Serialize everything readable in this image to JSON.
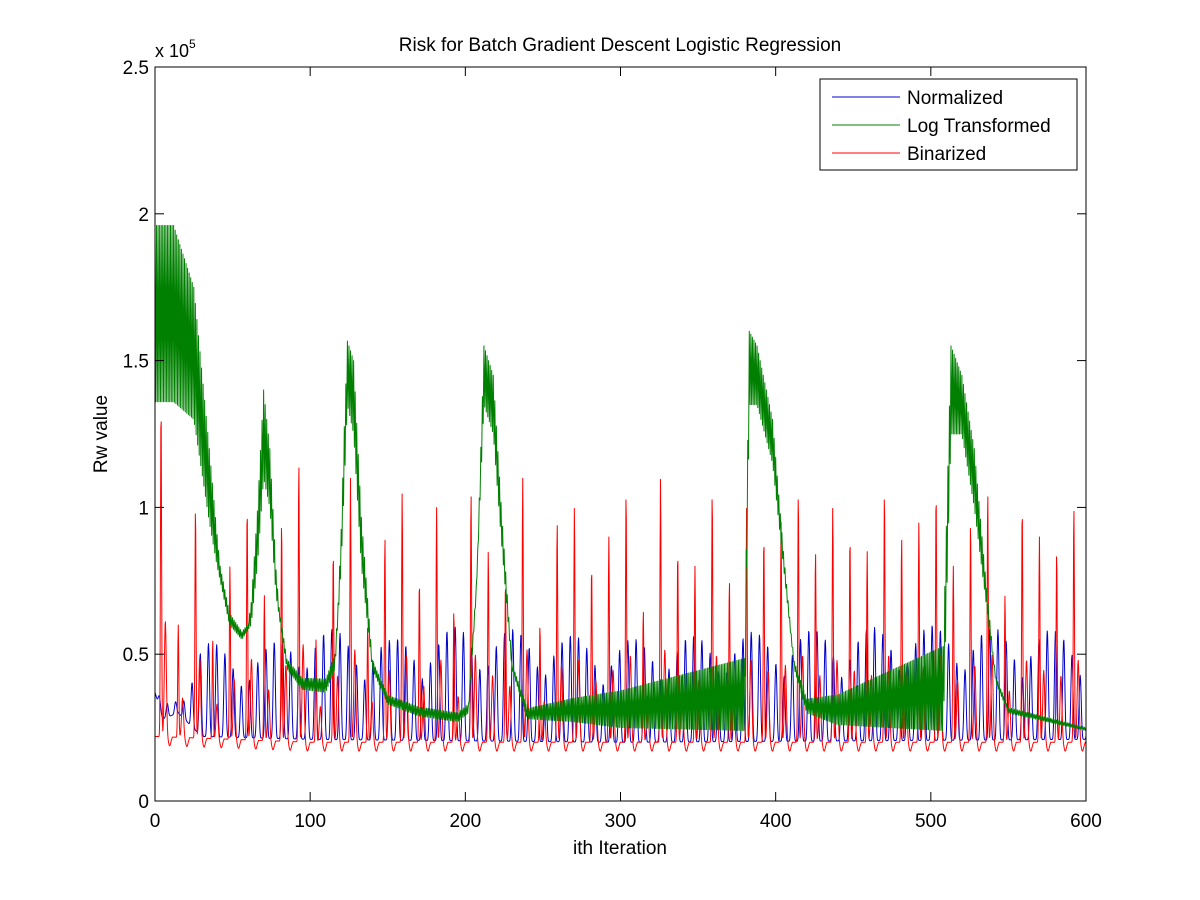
{
  "chart_data": {
    "type": "line",
    "title": "Risk for Batch Gradient Descent Logistic Regression",
    "xlabel": "ith Iteration",
    "ylabel": "Rw value",
    "y_exponent_label": "x 10",
    "y_exponent_power": "5",
    "xlim": [
      0,
      600
    ],
    "ylim": [
      0,
      2.5
    ],
    "y_scale": 100000,
    "x_ticks": [
      0,
      100,
      200,
      300,
      400,
      500,
      600
    ],
    "x_tick_labels": [
      "0",
      "100",
      "200",
      "300",
      "400",
      "500",
      "600"
    ],
    "y_ticks": [
      0,
      0.5,
      1,
      1.5,
      2,
      2.5
    ],
    "y_tick_labels": [
      "0",
      "0.5",
      "1",
      "1.5",
      "2",
      "2.5"
    ],
    "grid": false,
    "legend_position": "top-right",
    "series": [
      {
        "name": "Normalized",
        "color": "#0000cc",
        "pattern": "oscillating",
        "period": 5.3,
        "base": [
          [
            0,
            0.37
          ],
          [
            5,
            0.28
          ],
          [
            15,
            0.3
          ],
          [
            30,
            0.22
          ],
          [
            100,
            0.21
          ],
          [
            300,
            0.2
          ],
          [
            600,
            0.21
          ]
        ],
        "peak": [
          [
            0,
            0.37
          ],
          [
            10,
            0.33
          ],
          [
            20,
            0.4
          ],
          [
            30,
            0.55
          ],
          [
            60,
            0.5
          ],
          [
            100,
            0.6
          ],
          [
            150,
            0.55
          ],
          [
            200,
            0.6
          ],
          [
            300,
            0.55
          ],
          [
            400,
            0.58
          ],
          [
            500,
            0.6
          ],
          [
            600,
            0.58
          ]
        ]
      },
      {
        "name": "Log Transformed",
        "color": "#008000",
        "pattern": "bursts",
        "period": 2,
        "base": [
          [
            0,
            1.36
          ],
          [
            12,
            1.36
          ],
          [
            25,
            1.3
          ],
          [
            35,
            0.95
          ],
          [
            40,
            0.8
          ],
          [
            48,
            0.6
          ],
          [
            56,
            0.55
          ],
          [
            62,
            0.6
          ],
          [
            66,
            0.8
          ],
          [
            70,
            1.1
          ],
          [
            74,
            1.0
          ],
          [
            78,
            0.7
          ],
          [
            85,
            0.45
          ],
          [
            95,
            0.38
          ],
          [
            110,
            0.37
          ],
          [
            116,
            0.45
          ],
          [
            120,
            0.8
          ],
          [
            124,
            1.35
          ],
          [
            128,
            1.25
          ],
          [
            133,
            0.8
          ],
          [
            140,
            0.45
          ],
          [
            150,
            0.33
          ],
          [
            170,
            0.29
          ],
          [
            195,
            0.27
          ],
          [
            202,
            0.3
          ],
          [
            207,
            0.7
          ],
          [
            212,
            1.35
          ],
          [
            218,
            1.25
          ],
          [
            223,
            0.9
          ],
          [
            230,
            0.45
          ],
          [
            240,
            0.28
          ],
          [
            270,
            0.27
          ],
          [
            300,
            0.25
          ],
          [
            380,
            0.24
          ],
          [
            383,
            1.35
          ],
          [
            388,
            1.35
          ],
          [
            398,
            1.15
          ],
          [
            405,
            0.8
          ],
          [
            412,
            0.45
          ],
          [
            420,
            0.3
          ],
          [
            440,
            0.26
          ],
          [
            508,
            0.24
          ],
          [
            513,
            1.25
          ],
          [
            520,
            1.25
          ],
          [
            528,
            1.0
          ],
          [
            535,
            0.7
          ],
          [
            542,
            0.4
          ],
          [
            550,
            0.3
          ],
          [
            600,
            0.24
          ]
        ],
        "amp": [
          [
            0,
            0.6
          ],
          [
            12,
            0.6
          ],
          [
            25,
            0.45
          ],
          [
            35,
            0.25
          ],
          [
            42,
            0.05
          ],
          [
            60,
            0.02
          ],
          [
            70,
            0.3
          ],
          [
            74,
            0.2
          ],
          [
            80,
            0.03
          ],
          [
            118,
            0.05
          ],
          [
            122,
            0.2
          ],
          [
            128,
            0.25
          ],
          [
            134,
            0.15
          ],
          [
            140,
            0.03
          ],
          [
            208,
            0.03
          ],
          [
            212,
            0.2
          ],
          [
            218,
            0.2
          ],
          [
            224,
            0.1
          ],
          [
            230,
            0.02
          ],
          [
            383,
            0.25
          ],
          [
            388,
            0.2
          ],
          [
            398,
            0.15
          ],
          [
            405,
            0.05
          ],
          [
            410,
            0.02
          ],
          [
            513,
            0.3
          ],
          [
            520,
            0.2
          ],
          [
            528,
            0.2
          ],
          [
            535,
            0.08
          ],
          [
            540,
            0.02
          ],
          [
            600,
            0.01
          ]
        ]
      },
      {
        "name": "Binarized",
        "color": "#ff0000",
        "pattern": "spikes",
        "period": 11.1,
        "base": [
          [
            0,
            0.22
          ],
          [
            100,
            0.2
          ],
          [
            600,
            0.2
          ]
        ],
        "first_peak": 1.35,
        "peaks": [
          1.35,
          0.6,
          1.0,
          0.55,
          0.8,
          1.0,
          0.7,
          0.95,
          1.15,
          0.55,
          0.85,
          1.1,
          0.6,
          0.9,
          1.05,
          0.75,
          1.0,
          0.65,
          1.05,
          0.85,
          0.75,
          1.1,
          0.6,
          0.95,
          1.0,
          0.8,
          0.9,
          1.05,
          0.65,
          1.1,
          0.85,
          0.8,
          1.05,
          0.75,
          1.0,
          0.9,
          0.95,
          1.05,
          0.85,
          1.0,
          0.9,
          0.85,
          1.05,
          0.9,
          0.95,
          1.05,
          0.8,
          0.95,
          1.05,
          0.7,
          1.0,
          0.9,
          0.85,
          1.0,
          0.97
        ]
      }
    ]
  }
}
